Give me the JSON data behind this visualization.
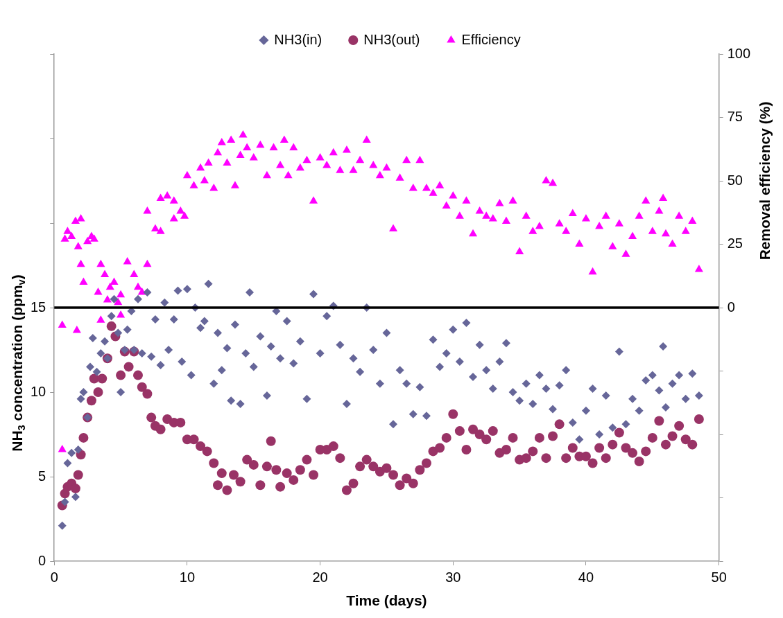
{
  "chart_data": {
    "type": "scatter",
    "xlabel": "Time (days)",
    "ylabel": "NH$_{3}$ concentration (ppm$_{v}$)",
    "y2label": "Removal efficiency (%)",
    "xlim": [
      0,
      50
    ],
    "xticks": [
      0,
      10,
      20,
      30,
      40,
      50
    ],
    "ylim": [
      0,
      30
    ],
    "yticks": [
      0,
      5,
      10,
      15,
      {
        "value": 20,
        "label": null
      },
      {
        "value": 25,
        "label": null
      },
      {
        "value": 30,
        "label": null
      }
    ],
    "y2lim": [
      -100,
      100
    ],
    "y2ticks": [
      {
        "value": -100,
        "label": null
      },
      {
        "value": -75,
        "label": null
      },
      {
        "value": -50,
        "label": null
      },
      {
        "value": -25,
        "label": null
      },
      0,
      25,
      50,
      75,
      100
    ],
    "grid": false,
    "legend": "top",
    "ref_lines": [
      {
        "axis": "y2",
        "value": 0,
        "color": "#000000"
      }
    ],
    "series": [
      {
        "name": "NH3(in)",
        "color": "#666699",
        "marker": "diamond",
        "x": [
          0.6,
          0.8,
          1,
          1.3,
          1.6,
          1.8,
          2,
          2.2,
          2.5,
          2.7,
          2.9,
          3.2,
          3.5,
          3.8,
          4,
          4.3,
          4.5,
          4.8,
          5,
          5.3,
          5.5,
          5.8,
          6,
          6.3,
          6.6,
          7,
          7.3,
          7.6,
          8,
          8.3,
          8.6,
          9,
          9.3,
          9.6,
          10,
          10.3,
          10.6,
          11,
          11.3,
          11.6,
          12,
          12.3,
          12.6,
          13,
          13.3,
          13.6,
          14,
          14.4,
          14.7,
          15,
          15.5,
          16,
          16.3,
          16.7,
          17,
          17.5,
          18,
          18.5,
          19,
          19.5,
          20,
          20.5,
          21,
          21.5,
          22,
          22.5,
          23,
          23.5,
          24,
          24.5,
          25,
          25.5,
          26,
          26.5,
          27,
          27.5,
          28,
          28.5,
          29,
          29.5,
          30,
          30.5,
          31,
          31.5,
          32,
          32.5,
          33,
          33.5,
          34,
          34.5,
          35,
          35.5,
          36,
          36.5,
          37,
          37.5,
          38,
          38.5,
          39,
          39.5,
          40,
          40.5,
          41,
          41.5,
          42,
          42.5,
          43,
          43.5,
          44,
          44.5,
          45,
          45.5,
          45.8,
          46,
          46.5,
          47,
          47.5,
          48,
          48.5
        ],
        "values": [
          2.1,
          3.5,
          5.8,
          6.4,
          3.8,
          6.6,
          9.6,
          10,
          8.5,
          11.5,
          13.2,
          11.2,
          12.3,
          13,
          12,
          14.5,
          15.5,
          13.5,
          10,
          12.5,
          13.7,
          14.8,
          12.5,
          15.5,
          12.3,
          15.9,
          12.1,
          14.3,
          11.6,
          15.3,
          12.5,
          14.3,
          16,
          11.8,
          16.1,
          11,
          15,
          13.8,
          14.2,
          16.4,
          10.5,
          13.5,
          11.3,
          12.6,
          9.5,
          14,
          9.3,
          12.3,
          15.9,
          11.5,
          13.3,
          9.8,
          12.7,
          14.8,
          12,
          14.2,
          11.7,
          13,
          9.6,
          15.8,
          12.3,
          14.5,
          15.1,
          12.8,
          9.3,
          12,
          11.2,
          15,
          12.5,
          10.5,
          13.5,
          8.1,
          11.3,
          10.5,
          8.7,
          10.3,
          8.6,
          13.1,
          11.5,
          12.3,
          13.7,
          11.8,
          14.1,
          10.9,
          12.8,
          11.3,
          10.2,
          11.8,
          12.9,
          10,
          9.5,
          10.5,
          9.3,
          11,
          10.2,
          9,
          10.4,
          11.3,
          8.2,
          7.2,
          8.9,
          10.2,
          7.5,
          9.8,
          7.9,
          12.4,
          8.1,
          9.6,
          8.9,
          10.7,
          11,
          10.1,
          12.7,
          9.1,
          10.5,
          11,
          9.6,
          11.1,
          9.8
        ]
      },
      {
        "name": "NH3(out)",
        "color": "#993366",
        "marker": "circle",
        "x": [
          0.6,
          0.8,
          1,
          1.3,
          1.6,
          1.8,
          2,
          2.2,
          2.5,
          2.8,
          3,
          3.3,
          3.6,
          4,
          4.3,
          4.6,
          5,
          5.3,
          5.6,
          6,
          6.3,
          6.6,
          7,
          7.3,
          7.6,
          8,
          8.5,
          9,
          9.5,
          10,
          10.5,
          11,
          11.5,
          12,
          12.3,
          12.6,
          13,
          13.5,
          14,
          14.5,
          15,
          15.5,
          16,
          16.3,
          16.7,
          17,
          17.5,
          18,
          18.5,
          19,
          19.5,
          20,
          20.5,
          21,
          21.5,
          22,
          22.5,
          23,
          23.5,
          24,
          24.5,
          25,
          25.5,
          26,
          26.5,
          27,
          27.5,
          28,
          28.5,
          29,
          29.5,
          30,
          30.5,
          31,
          31.5,
          32,
          32.5,
          33,
          33.5,
          34,
          34.5,
          35,
          35.5,
          36,
          36.5,
          37,
          37.5,
          38,
          38.5,
          39,
          39.5,
          40,
          40.5,
          41,
          41.5,
          42,
          42.5,
          43,
          43.5,
          44,
          44.5,
          45,
          45.5,
          46,
          46.5,
          47,
          47.5,
          48,
          48.5
        ],
        "values": [
          3.3,
          4,
          4.4,
          4.6,
          4.3,
          5.1,
          6.3,
          7.3,
          8.5,
          9.5,
          10.8,
          10,
          10.8,
          12,
          13.9,
          13.3,
          11,
          12.4,
          11.5,
          12.4,
          11,
          10.3,
          9.9,
          8.5,
          8,
          7.8,
          8.4,
          8.2,
          8.2,
          7.2,
          7.2,
          6.8,
          6.5,
          5.8,
          4.5,
          5.2,
          4.2,
          5.1,
          4.7,
          6,
          5.7,
          4.5,
          5.6,
          7.1,
          5.4,
          4.4,
          5.2,
          4.8,
          5.4,
          6,
          5.1,
          6.6,
          6.6,
          6.8,
          6.1,
          4.2,
          4.6,
          5.6,
          6,
          5.6,
          5.3,
          5.5,
          5.1,
          4.5,
          4.9,
          4.6,
          5.4,
          5.8,
          6.5,
          6.7,
          7.3,
          8.7,
          7.7,
          6.6,
          7.8,
          7.5,
          7.2,
          7.7,
          6.4,
          6.6,
          7.3,
          6,
          6.1,
          6.5,
          7.3,
          6.1,
          7.4,
          8.1,
          6.1,
          6.7,
          6.2,
          6.2,
          5.8,
          6.7,
          6.1,
          6.9,
          7.6,
          6.7,
          6.4,
          5.9,
          6.5,
          7.3,
          8.3,
          6.9,
          7.4,
          8,
          7.2,
          6.9,
          8.4
        ]
      },
      {
        "name": "Efficiency",
        "color": "#ff00ff",
        "marker": "triangle",
        "axis": "y2",
        "x": [
          0.6,
          0.6,
          0.8,
          1,
          1.3,
          1.6,
          1.7,
          1.8,
          2,
          2,
          2.2,
          2.5,
          2.8,
          3,
          3.3,
          3.5,
          3.5,
          3.8,
          4,
          4.2,
          4.5,
          4.8,
          5,
          5,
          5.5,
          6,
          6.3,
          6.6,
          7,
          7,
          7.6,
          8,
          8,
          8.5,
          9,
          9,
          9.5,
          9.8,
          10,
          10.5,
          11,
          11.3,
          11.6,
          12,
          12.3,
          12.6,
          13,
          13.3,
          13.6,
          14,
          14.2,
          14.5,
          15,
          15.5,
          16,
          16.5,
          17,
          17.3,
          17.6,
          18,
          18.5,
          19,
          19.5,
          20,
          20.5,
          21,
          21.5,
          22,
          22.5,
          23,
          23.5,
          24,
          24.5,
          25,
          25.5,
          26,
          26.5,
          27,
          27.5,
          28,
          28.5,
          29,
          29.5,
          30,
          30.5,
          31,
          31.5,
          32,
          32.5,
          33,
          33.5,
          34,
          34.5,
          35,
          35.5,
          36,
          36.5,
          37,
          37.5,
          38,
          38.5,
          39,
          39.5,
          40,
          40.5,
          41,
          41.5,
          42,
          42.5,
          43,
          43.5,
          44,
          44.5,
          45,
          45.5,
          45.8,
          46,
          46.5,
          47,
          47.5,
          48,
          48.5
        ],
        "values": [
          -56,
          -7,
          27,
          30,
          28,
          34,
          -9,
          24,
          35,
          17,
          10,
          26,
          28,
          27,
          6,
          17,
          -5,
          13,
          3,
          8,
          10,
          2,
          -3,
          5,
          18,
          13,
          8,
          6,
          17,
          38,
          31,
          43,
          30,
          44,
          35,
          42,
          38,
          36,
          52,
          48,
          55,
          50,
          57,
          47,
          61,
          65,
          57,
          66,
          48,
          60,
          68,
          63,
          59,
          64,
          52,
          63,
          56,
          66,
          52,
          63,
          55,
          58,
          42,
          59,
          56,
          61,
          54,
          62,
          54,
          58,
          66,
          56,
          52,
          55,
          31,
          51,
          58,
          47,
          58,
          47,
          45,
          48,
          40,
          44,
          36,
          42,
          29,
          38,
          36,
          35,
          41,
          34,
          42,
          22,
          36,
          30,
          32,
          50,
          49,
          33,
          30,
          37,
          25,
          35,
          14,
          32,
          36,
          24,
          33,
          21,
          28,
          36,
          42,
          30,
          38,
          43,
          29,
          25,
          36,
          30,
          34,
          15
        ]
      }
    ]
  }
}
